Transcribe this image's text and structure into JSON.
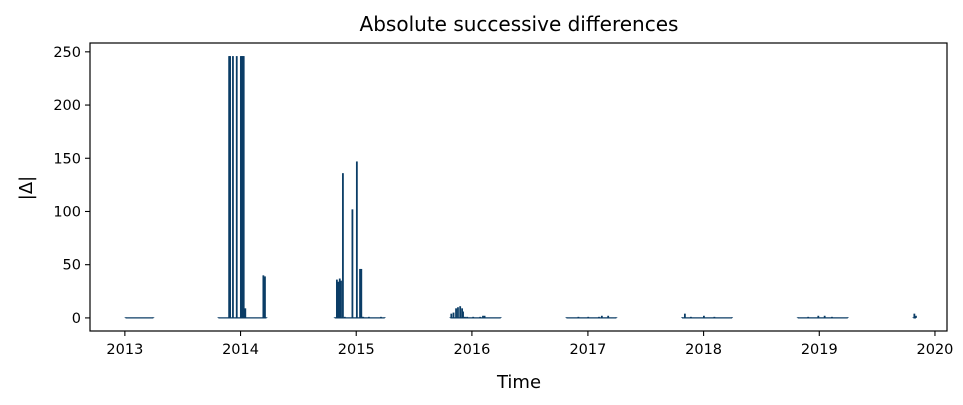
{
  "chart_data": {
    "type": "bar",
    "title": "Absolute successive differences",
    "xlabel": "Time",
    "ylabel": "|Δ|",
    "xlim": [
      "2012-09-13",
      "2020-02-08"
    ],
    "ylim": [
      -12.3,
      258.3
    ],
    "xticks": [
      "2013",
      "2014",
      "2015",
      "2016",
      "2017",
      "2018",
      "2019",
      "2020"
    ],
    "yticks": [
      0,
      50,
      100,
      150,
      200,
      250
    ],
    "grid": false,
    "color": "#0b3d66",
    "series": [
      {
        "name": "",
        "x": [
          "2013-01-03",
          "2013-04-01",
          "2013-10-23",
          "2013-11-26",
          "2013-11-29",
          "2013-12-08",
          "2013-12-20",
          "2014-01-02",
          "2014-01-05",
          "2014-01-08",
          "2014-01-11",
          "2014-01-16",
          "2014-03-14",
          "2014-03-16",
          "2014-03-19",
          "2014-03-24",
          "2014-10-25",
          "2014-11-01",
          "2014-11-05",
          "2014-11-10",
          "2014-11-14",
          "2014-11-20",
          "2014-11-26",
          "2014-12-20",
          "2015-01-03",
          "2015-01-13",
          "2015-01-17",
          "2015-01-19",
          "2015-01-23",
          "2015-02-10",
          "2015-03-20",
          "2015-04-01",
          "2015-10-25",
          "2015-10-28",
          "2015-11-04",
          "2015-11-12",
          "2015-11-18",
          "2015-11-25",
          "2015-12-01",
          "2015-12-04",
          "2015-12-10",
          "2015-12-17",
          "2016-01-05",
          "2016-01-27",
          "2016-02-05",
          "2016-02-10",
          "2016-04-01",
          "2016-10-25",
          "2016-12-02",
          "2017-01-02",
          "2017-02-05",
          "2017-02-14",
          "2017-03-06",
          "2017-04-01",
          "2017-10-25",
          "2017-11-03",
          "2017-11-22",
          "2018-01-02",
          "2018-02-04",
          "2018-04-01",
          "2018-10-25",
          "2018-11-27",
          "2018-12-29",
          "2019-01-18",
          "2019-02-10",
          "2019-04-01",
          "2019-10-25",
          "2019-10-28",
          "2019-11-02"
        ],
        "values": [
          0,
          0,
          0,
          246,
          246,
          246,
          246,
          246,
          246,
          246,
          246,
          9,
          40,
          38,
          39,
          0,
          0,
          36,
          34,
          37,
          35,
          136,
          1,
          102,
          147,
          46,
          46,
          1,
          1,
          1,
          1,
          0,
          0,
          4,
          5,
          9,
          10,
          11,
          9,
          6,
          1,
          1,
          1,
          1,
          2,
          2,
          0,
          0,
          1,
          1,
          1,
          2,
          2,
          0,
          0,
          4,
          1,
          2,
          1,
          0,
          0,
          1,
          2,
          2,
          1,
          0,
          0,
          4,
          2
        ]
      }
    ]
  }
}
